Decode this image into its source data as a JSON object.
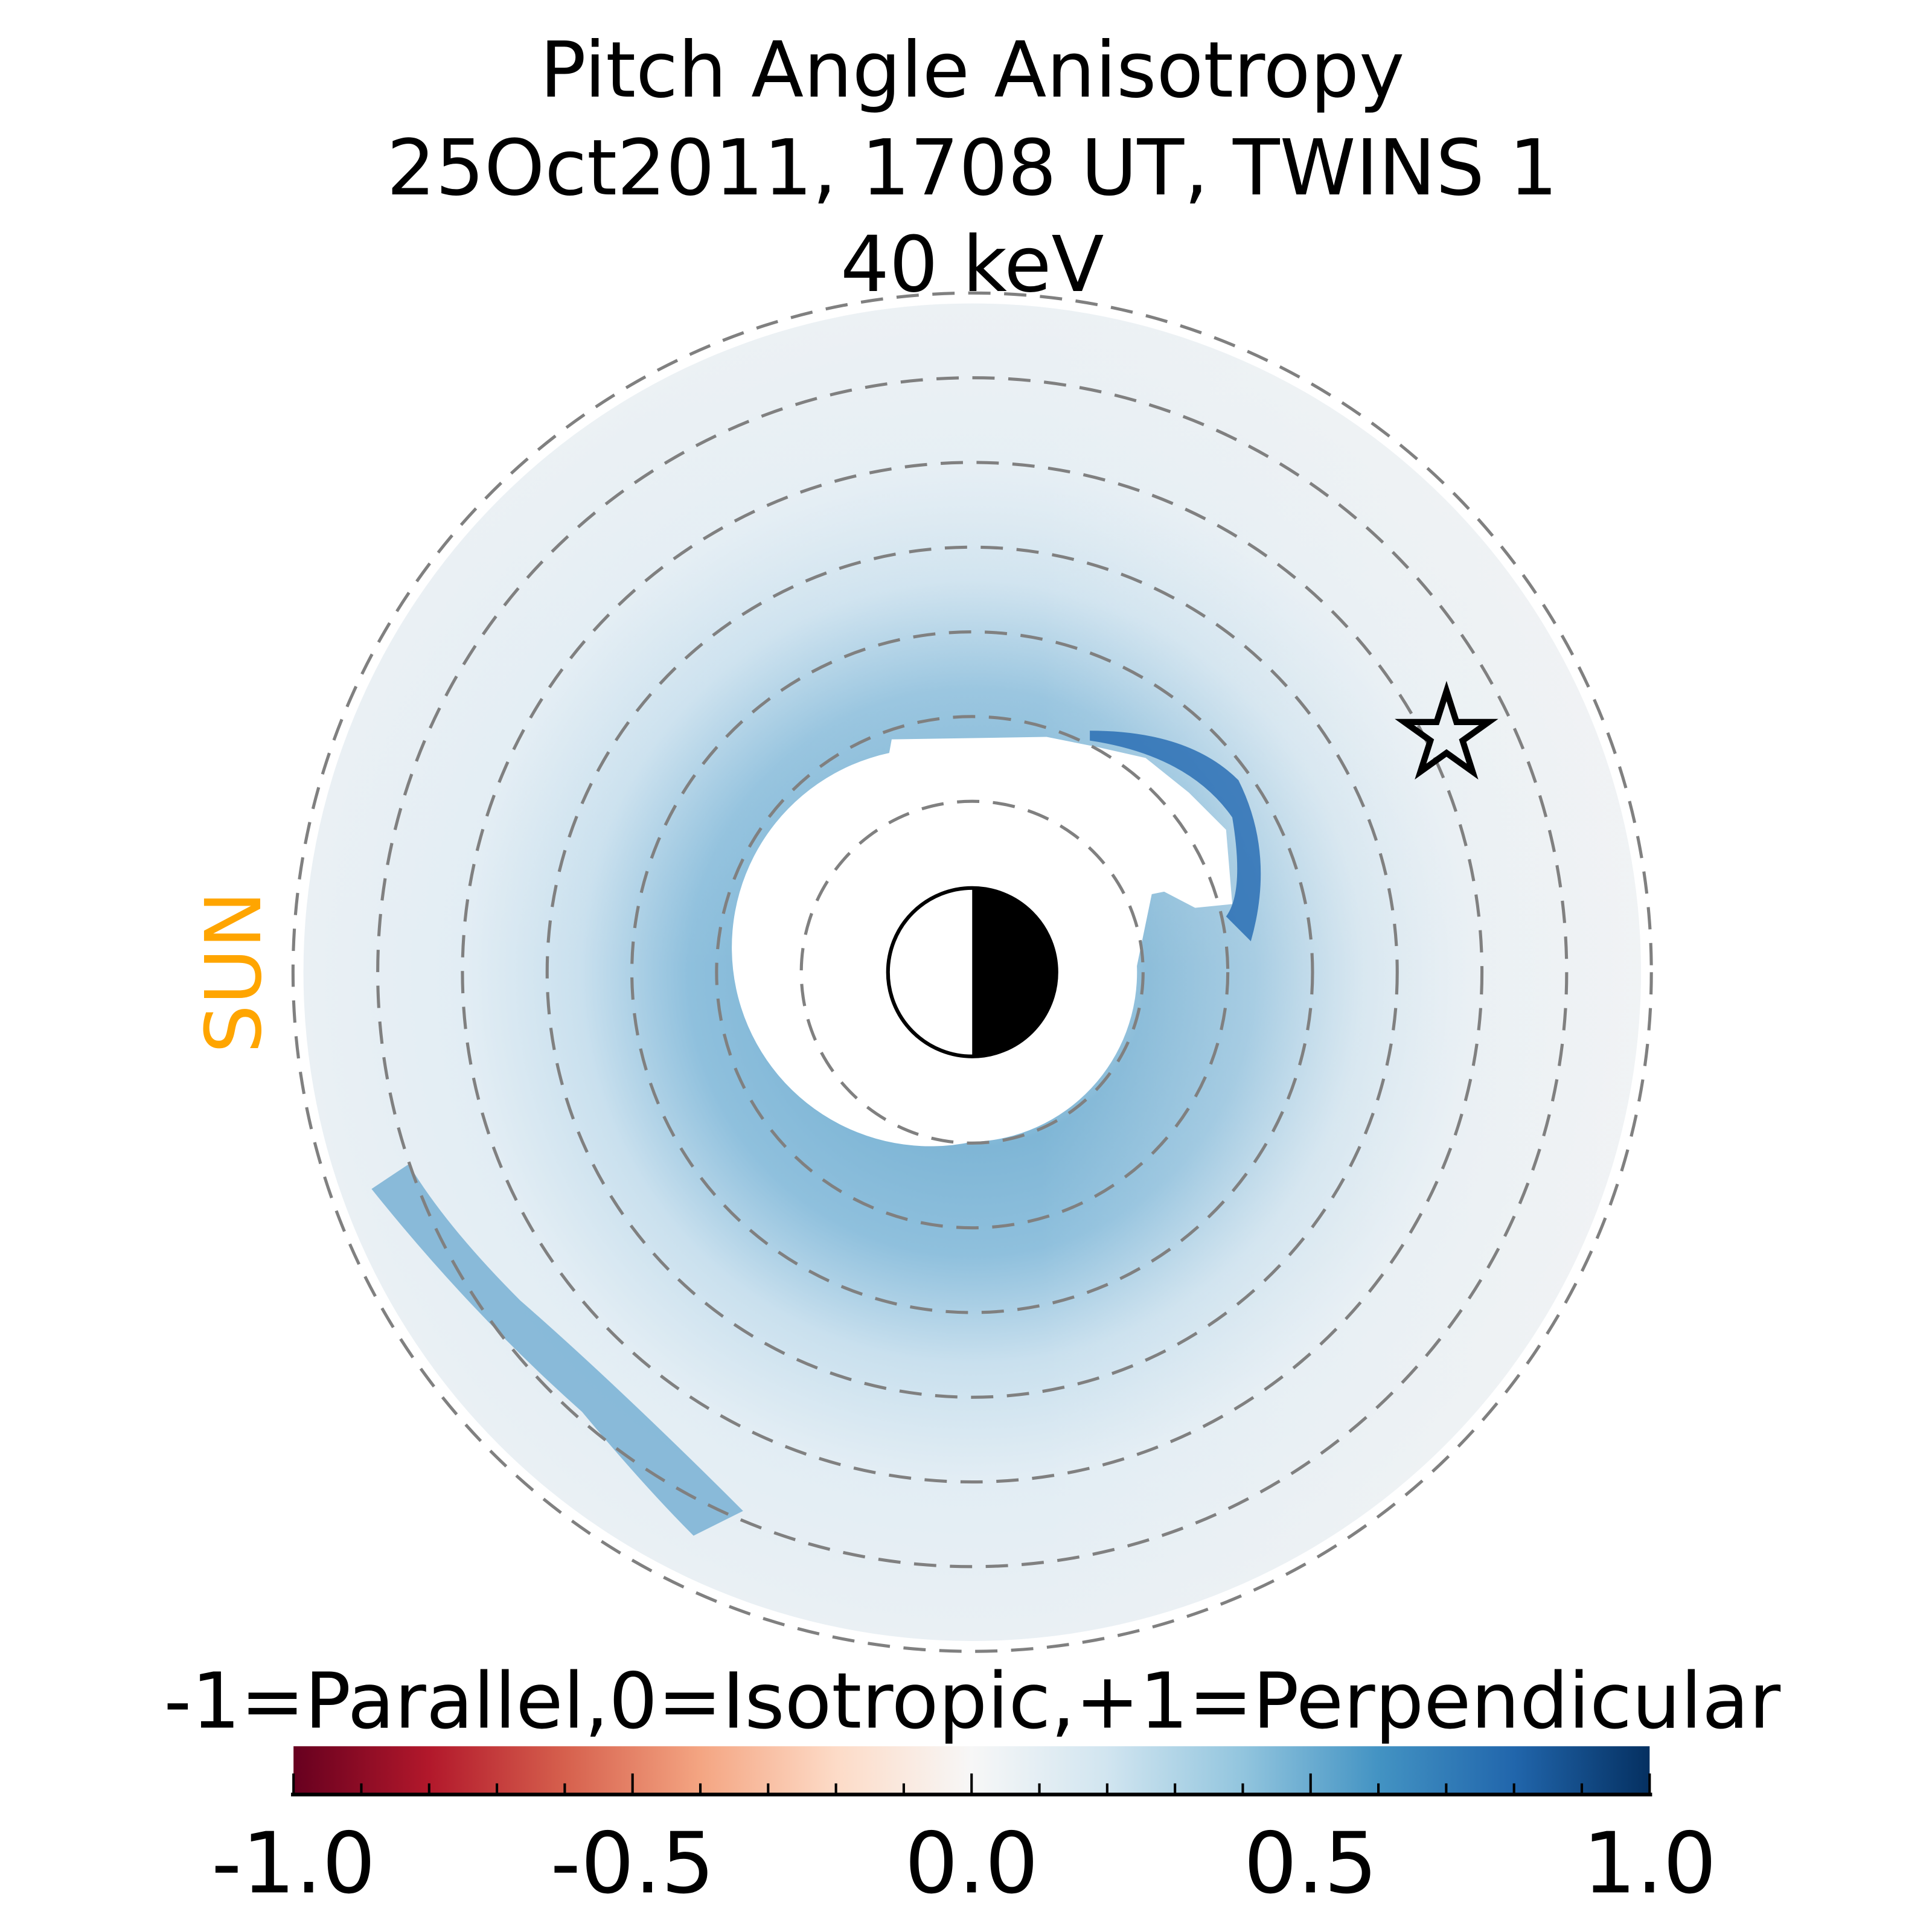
{
  "chart_data": {
    "type": "heatmap",
    "title": [
      "Pitch Angle Anisotropy",
      "25Oct2011, 1708 UT,  TWINS 1",
      "40 keV"
    ],
    "sun_label": "SUN",
    "colorbar": {
      "label": "-1=Parallel,0=Isotropic,+1=Perpendicular",
      "range": [
        -1.0,
        1.0
      ],
      "ticks": [
        -1.0,
        -0.5,
        0.0,
        0.5,
        1.0
      ],
      "tick_labels": [
        "-1.0",
        "-0.5",
        "0.0",
        "0.5",
        "1.0"
      ],
      "minor_step": 0.1,
      "colormap": "RdBu",
      "colors": [
        "#67001f",
        "#b2182b",
        "#d6604d",
        "#f4a582",
        "#fddbc7",
        "#f7f7f7",
        "#d1e5f0",
        "#92c5de",
        "#4393c3",
        "#2166ac",
        "#053061"
      ]
    },
    "dashed_circles_count": 7,
    "features": {
      "earth_symbol": "half-lit, dark side right (away from sun)",
      "star_marker": "satellite position",
      "peak_anisotropy": 0.85,
      "ring_anisotropy": 0.4,
      "background_anisotropy": 0.05
    },
    "colors": {
      "sun": "#FFA500",
      "dashes": "#808080"
    }
  }
}
